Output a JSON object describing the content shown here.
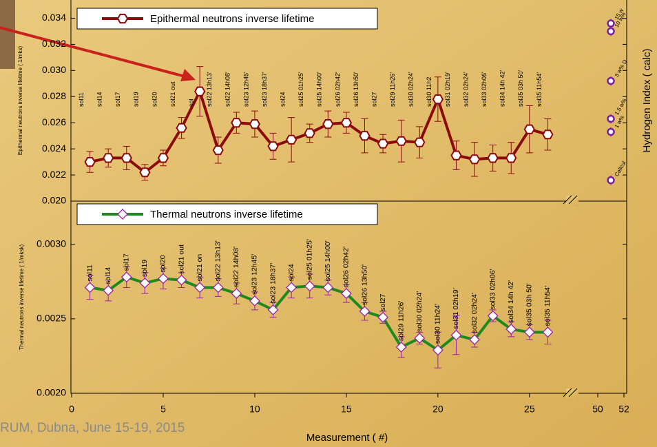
{
  "chart_data": [
    {
      "type": "line",
      "ylabel": "Epithermal neutrons inverse lifetime ( 1/mks)",
      "y2label": "Hydrogen Index ( calc)",
      "x": [
        1,
        2,
        3,
        4,
        5,
        6,
        7,
        8,
        9,
        10,
        11,
        12,
        13,
        14,
        15,
        16,
        17,
        18,
        19,
        20,
        21,
        22,
        23,
        24,
        25,
        26
      ],
      "xlim": [
        0,
        52
      ],
      "xbreak": [
        27.3,
        48
      ],
      "ylim": [
        0.02,
        0.0355
      ],
      "yticks": [
        {
          "value": 0.02,
          "label": "0.020"
        },
        {
          "value": 0.022,
          "label": "0.022"
        },
        {
          "value": 0.024,
          "label": "0.024"
        },
        {
          "value": 0.026,
          "label": "0.026"
        },
        {
          "value": 0.028,
          "label": "0.028"
        },
        {
          "value": 0.03,
          "label": "0.030"
        },
        {
          "value": 0.032,
          "label": "0.032"
        },
        {
          "value": 0.034,
          "label": "0.034"
        }
      ],
      "series": [
        {
          "name": "Epithermal neutrons inverse lifetime",
          "color": "#8b0a0a",
          "marker": "hexagon",
          "values": [
            0.023,
            0.0233,
            0.0233,
            0.0222,
            0.0233,
            0.0256,
            0.0284,
            0.0239,
            0.026,
            0.0259,
            0.0242,
            0.0247,
            0.0252,
            0.0259,
            0.026,
            0.025,
            0.0244,
            0.0246,
            0.0245,
            0.0278,
            0.0235,
            0.0232,
            0.0233,
            0.0233,
            0.0255,
            0.0251
          ],
          "errors": [
            0.0008,
            0.0007,
            0.0009,
            0.0006,
            0.0006,
            0.0008,
            0.0019,
            0.001,
            0.0008,
            0.001,
            0.001,
            0.0017,
            0.0007,
            0.001,
            0.0008,
            0.0013,
            0.0007,
            0.0016,
            0.0012,
            0.0017,
            0.0011,
            0.0013,
            0.001,
            0.0012,
            0.0018,
            0.0012
          ],
          "point_labels": [
            "sol11",
            "sol14",
            "sol17",
            "sol19",
            "sol20",
            "sol21 out",
            "sol",
            "sol22 13h13'",
            "sol22 14h08'",
            "sol23 12h45'",
            "sol23 18h37'",
            "sol24",
            "sol25 01h25'",
            "sol25 14h00'",
            "sol26 02h42'",
            "sol26 13h50'",
            "sol27",
            "sol29 11h26'",
            "sol30  02h24'",
            "sol30  11h2",
            "sol31 02h19'",
            "sol32  02h24'",
            "sol33 02h06'",
            "sol34 14h 42'",
            "sol35 03h 50'",
            "sol35 11h54'"
          ]
        }
      ],
      "calibration": {
        "color": "#7a1fa0",
        "x": [
          51,
          51,
          51,
          51,
          51,
          51
        ],
        "values": [
          0.0336,
          0.033,
          0.0292,
          0.0263,
          0.0253,
          0.0216
        ],
        "labels": [
          "15 w",
          "10 w%",
          "3 w% D",
          "1.5 w%",
          "1 w%",
          "Callcul"
        ]
      }
    },
    {
      "type": "line",
      "ylabel": "Thermal neutrons inverse lifetime ( 1/mksk)",
      "xlabel": "Measurement ( #)",
      "x": [
        1,
        2,
        3,
        4,
        5,
        6,
        7,
        8,
        9,
        10,
        11,
        12,
        13,
        14,
        15,
        16,
        17,
        18,
        19,
        20,
        21,
        22,
        23,
        24,
        25,
        26
      ],
      "xlim": [
        0,
        52
      ],
      "xbreak": [
        27.3,
        48
      ],
      "xticks": [
        0,
        5,
        10,
        15,
        20,
        25,
        50,
        52
      ],
      "ylim": [
        0.002,
        0.00329
      ],
      "yticks": [
        {
          "value": 0.002,
          "label": "0.0020"
        },
        {
          "value": 0.0025,
          "label": "0.0025"
        },
        {
          "value": 0.003,
          "label": "0.0030"
        }
      ],
      "series": [
        {
          "name": "Thermal neutrons inverse lifetime",
          "color": "#1e8a1e",
          "marker": "diamond",
          "marker_color": "#9b1fa8",
          "values": [
            0.00271,
            0.00269,
            0.00278,
            0.00274,
            0.00277,
            0.00276,
            0.00271,
            0.00271,
            0.00267,
            0.00262,
            0.00256,
            0.00271,
            0.00272,
            0.00271,
            0.00267,
            0.00255,
            0.00251,
            0.00231,
            0.00237,
            0.00229,
            0.00239,
            0.00236,
            0.00252,
            0.00243,
            0.00241,
            0.00241
          ],
          "errors": [
            8e-05,
            7e-05,
            7e-05,
            7e-05,
            7e-05,
            5e-05,
            7e-05,
            6e-05,
            7e-05,
            6e-05,
            5e-05,
            7e-05,
            8e-05,
            5e-05,
            6e-05,
            6e-05,
            4e-05,
            7e-05,
            4e-05,
            0.00012,
            0.00013,
            5e-05,
            4e-05,
            5e-05,
            5e-05,
            8e-05
          ],
          "point_labels": [
            "sol11",
            "sol14",
            "sol17",
            "sol19",
            "sol20",
            "sol21 out",
            "sol21 on",
            "sol22 13h13'",
            "sol22 14h08'",
            "sol23 12h45'",
            "sol23 18h37'",
            "sol24",
            "sol25 01h25'",
            "sol25 14h00'",
            "sol26 02h42'",
            "sol26 13h50'",
            "sol27",
            "sol29 11h26'",
            "sol30  02h24'",
            "sol30  11h24'",
            "sol31 02h19'",
            "sol32  02h24'",
            "sol33 02h06'",
            "sol34 14h 42'",
            "sol35 03h 50'",
            "sol35 11h54'"
          ]
        }
      ]
    }
  ],
  "footer": "RUM, Dubna, June 15-19, 2015"
}
